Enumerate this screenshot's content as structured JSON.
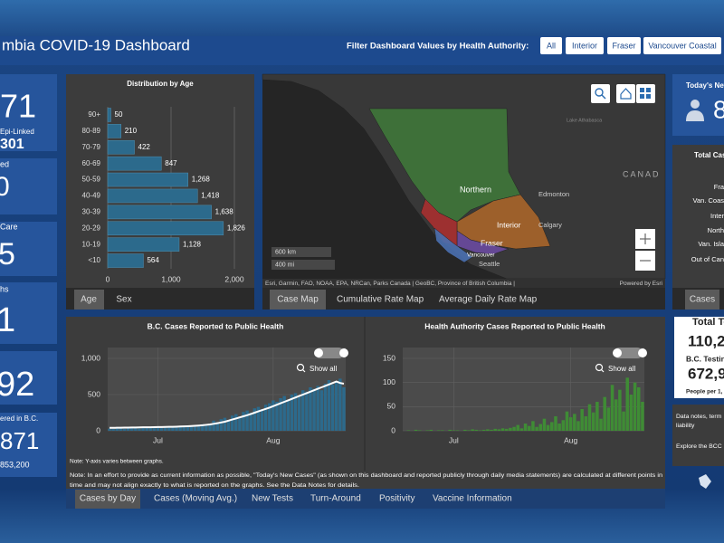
{
  "header": {
    "title": "mbia COVID-19 Dashboard",
    "filter_label": "Filter Dashboard Values by Health Authority:",
    "filters": [
      "All",
      "Interior",
      "Fraser",
      "Vancouver Coastal"
    ]
  },
  "left_cards": [
    {
      "value": "71",
      "label": "Epi-Linked",
      "sub": "301"
    },
    {
      "label": "ed",
      "value": "0"
    },
    {
      "label": "Care",
      "value": "5"
    },
    {
      "label": "hs",
      "value": "1"
    },
    {
      "value": "92"
    },
    {
      "label": "ered in B.C.",
      "value": "871",
      "sub": "853,200"
    }
  ],
  "age_tabs": [
    "Age",
    "Sex"
  ],
  "map": {
    "labels": {
      "northern": "Northern",
      "edmonton": "Edmonton",
      "interior": "Interior",
      "calgary": "Calgary",
      "fraser": "Fraser",
      "vancouver": "Vancouver",
      "seattle": "Seattle",
      "country": "CANAD",
      "lake": "Lake Athabasca"
    },
    "scale": [
      "600 km",
      "400 mi"
    ],
    "attribution": "Esri, Garmin, FAO, NOAA, EPA, NRCan, Parks Canada | GeoBC, Province of British Columbia |",
    "powered_by": "Powered by Esri",
    "tabs": [
      "Case Map",
      "Cumulative Rate Map",
      "Average Daily Rate Map"
    ]
  },
  "right": {
    "today_label": "Today's New",
    "today_value": "8",
    "total_cases_title": "Total Cas",
    "total_cases_rows": [
      "Fra",
      "Van. Coas",
      "Inter",
      "North",
      "Van. Isla",
      "Out of Can"
    ],
    "cases_tab": "Cases",
    "tests_title": "Total Te",
    "tests_value": "110,2",
    "bc_testing_label": "B.C. Testin",
    "bc_testing_value": "672,9",
    "people_per": "People per 1,",
    "notes": [
      "Data notes, term",
      "liability",
      "Explore the BCC"
    ]
  },
  "bottom_note": [
    "Note: In an effort to provide as current information as possible, \"Today's New Cases\" (as shown on this dashboard and reported publicly through daily media statements) are calculated at different points in",
    "time and may not align exactly to what is reported on the graphs. See the Data Notes for details."
  ],
  "bottom_tabs": [
    "Cases by Day",
    "Cases (Moving Avg.)",
    "New Tests",
    "Turn-Around",
    "Positivity",
    "Vaccine Information"
  ],
  "chart_data": [
    {
      "type": "hbar",
      "title": "Distribution by Age",
      "categories": [
        "90+",
        "80-89",
        "70-79",
        "60-69",
        "50-59",
        "40-49",
        "30-39",
        "20-29",
        "10-19",
        "<10"
      ],
      "values": [
        50,
        210,
        422,
        847,
        1268,
        1418,
        1638,
        1826,
        1128,
        564
      ],
      "value_labels": [
        "50",
        "210",
        "422",
        "847",
        "1,268",
        "1,418",
        "1,638",
        "1,826",
        "1,128",
        "564"
      ],
      "color": "#2c6a8c",
      "xlim": [
        0,
        2000
      ],
      "xticks": [
        0,
        {
          "value": 1000,
          "label": "1,000"
        },
        {
          "value": 2000,
          "label": "2,000"
        }
      ],
      "grid": true
    },
    {
      "type": "bar_line",
      "title": "B.C. Cases Reported to Public Health",
      "categories": [
        null,
        null,
        null,
        null,
        null,
        null,
        null,
        null,
        null,
        null,
        null,
        null,
        null,
        null,
        null,
        null,
        null,
        null,
        null,
        null,
        null,
        null,
        null,
        null,
        null,
        null,
        null,
        null,
        null,
        null,
        null,
        null,
        null,
        null,
        null,
        null,
        null,
        null,
        null,
        null,
        null,
        null,
        null,
        null,
        null,
        null,
        null,
        null,
        null,
        null,
        null,
        null,
        null,
        null,
        null,
        null,
        null,
        null,
        null,
        null,
        null,
        null,
        null,
        null
      ],
      "xticks": [
        {
          "value": 13,
          "label": "Jul"
        },
        {
          "value": 44,
          "label": "Aug"
        }
      ],
      "series": [
        {
          "type": "bar",
          "color": "#2c6a8c",
          "values": [
            30,
            25,
            40,
            35,
            28,
            45,
            38,
            42,
            30,
            50,
            44,
            36,
            48,
            55,
            40,
            52,
            60,
            45,
            58,
            62,
            70,
            55,
            68,
            80,
            75,
            90,
            85,
            100,
            140,
            120,
            160,
            180,
            150,
            210,
            230,
            200,
            260,
            280,
            250,
            310,
            330,
            300,
            360,
            380,
            420,
            400,
            450,
            480,
            430,
            500,
            520,
            470,
            560,
            540,
            600,
            580,
            620,
            560,
            650,
            700,
            640,
            680,
            720,
            600
          ]
        },
        {
          "type": "line",
          "color": "#ffffff",
          "values": [
            40,
            40,
            42,
            42,
            43,
            44,
            45,
            46,
            47,
            48,
            48,
            49,
            50,
            51,
            52,
            53,
            54,
            55,
            57,
            59,
            61,
            63,
            65,
            68,
            72,
            76,
            82,
            88,
            96,
            105,
            115,
            125,
            140,
            155,
            170,
            185,
            200,
            215,
            232,
            250,
            268,
            285,
            302,
            320,
            340,
            360,
            380,
            400,
            420,
            440,
            460,
            480,
            500,
            520,
            540,
            560,
            580,
            600,
            620,
            640,
            660,
            680,
            660,
            650
          ]
        }
      ],
      "ylim": [
        0,
        1100
      ],
      "yticks": [
        0,
        500,
        {
          "value": 1000,
          "label": "1,000"
        }
      ],
      "grid": true,
      "show_all": "Show all",
      "note": "Note: Y-axis varies between graphs."
    },
    {
      "type": "bar_line",
      "title": "Health Authority Cases Reported to Public Health",
      "categories": [
        null,
        null,
        null,
        null,
        null,
        null,
        null,
        null,
        null,
        null,
        null,
        null,
        null,
        null,
        null,
        null,
        null,
        null,
        null,
        null,
        null,
        null,
        null,
        null,
        null,
        null,
        null,
        null,
        null,
        null,
        null,
        null,
        null,
        null,
        null,
        null,
        null,
        null,
        null,
        null,
        null,
        null,
        null,
        null,
        null,
        null,
        null,
        null,
        null,
        null,
        null,
        null,
        null,
        null,
        null,
        null,
        null,
        null,
        null,
        null,
        null,
        null,
        null,
        null
      ],
      "xticks": [
        {
          "value": 13,
          "label": "Jul"
        },
        {
          "value": 44,
          "label": "Aug"
        }
      ],
      "series": [
        {
          "type": "bar",
          "color": "#3f8c35",
          "values": [
            0,
            1,
            0,
            2,
            1,
            0,
            1,
            2,
            0,
            1,
            1,
            0,
            2,
            1,
            1,
            0,
            2,
            1,
            3,
            2,
            1,
            2,
            3,
            2,
            4,
            3,
            5,
            4,
            6,
            8,
            12,
            5,
            15,
            10,
            20,
            8,
            14,
            25,
            12,
            18,
            30,
            15,
            22,
            40,
            28,
            35,
            20,
            45,
            30,
            55,
            38,
            60,
            25,
            70,
            48,
            95,
            65,
            85,
            40,
            110,
            75,
            100,
            90,
            60
          ]
        }
      ],
      "ylim": [
        0,
        165
      ],
      "yticks": [
        0,
        50,
        100,
        150
      ],
      "grid": true,
      "show_all": "Show all"
    }
  ]
}
